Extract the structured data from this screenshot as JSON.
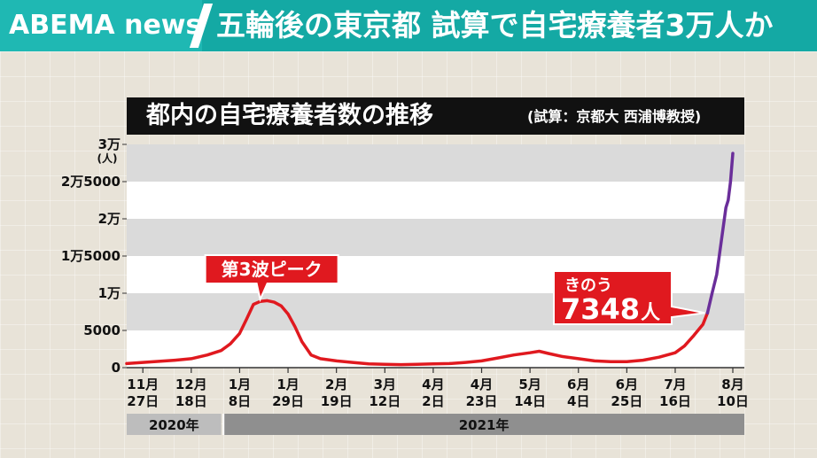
{
  "header": {
    "logo": "ABEMA news",
    "headline": "五輪後の東京都 試算で自宅療養者3万人か"
  },
  "chart_data": {
    "type": "line",
    "title": "都内の自宅療養者数の推移",
    "subtitle": "(試算：京都大 西浦博教授)",
    "ylabel": "(人)",
    "ylim": [
      0,
      30000
    ],
    "yticks": [
      {
        "value": 0,
        "label": "0"
      },
      {
        "value": 5000,
        "label": "5000"
      },
      {
        "value": 10000,
        "label": "1万"
      },
      {
        "value": 15000,
        "label": "1万5000"
      },
      {
        "value": 20000,
        "label": "2万"
      },
      {
        "value": 25000,
        "label": "2万5000"
      },
      {
        "value": 30000,
        "label": "3万"
      }
    ],
    "xticks": [
      {
        "date": "2020-11-27",
        "month": "11月",
        "day": "27日"
      },
      {
        "date": "2020-12-18",
        "month": "12月",
        "day": "18日"
      },
      {
        "date": "2021-01-08",
        "month": "1月",
        "day": "8日"
      },
      {
        "date": "2021-01-29",
        "month": "1月",
        "day": "29日"
      },
      {
        "date": "2021-02-19",
        "month": "2月",
        "day": "19日"
      },
      {
        "date": "2021-03-12",
        "month": "3月",
        "day": "12日"
      },
      {
        "date": "2021-04-02",
        "month": "4月",
        "day": "2日"
      },
      {
        "date": "2021-04-23",
        "month": "4月",
        "day": "23日"
      },
      {
        "date": "2021-05-14",
        "month": "5月",
        "day": "14日"
      },
      {
        "date": "2021-06-04",
        "month": "6月",
        "day": "4日"
      },
      {
        "date": "2021-06-25",
        "month": "6月",
        "day": "25日"
      },
      {
        "date": "2021-07-16",
        "month": "7月",
        "day": "16日"
      },
      {
        "date": "2021-08-10",
        "month": "8月",
        "day": "10日"
      }
    ],
    "years": [
      {
        "label": "2020年",
        "from": "2020-11-20",
        "to": "2020-12-31"
      },
      {
        "label": "2021年",
        "from": "2021-01-01",
        "to": "2021-08-15"
      }
    ],
    "series": [
      {
        "color": "#e0191f",
        "points": [
          [
            "2020-11-20",
            550
          ],
          [
            "2020-11-27",
            700
          ],
          [
            "2020-12-04",
            850
          ],
          [
            "2020-12-11",
            1000
          ],
          [
            "2020-12-18",
            1200
          ],
          [
            "2020-12-25",
            1700
          ],
          [
            "2020-12-31",
            2300
          ],
          [
            "2021-01-04",
            3200
          ],
          [
            "2021-01-08",
            4600
          ],
          [
            "2021-01-11",
            6500
          ],
          [
            "2021-01-14",
            8500
          ],
          [
            "2021-01-17",
            8900
          ],
          [
            "2021-01-20",
            9000
          ],
          [
            "2021-01-23",
            8800
          ],
          [
            "2021-01-26",
            8300
          ],
          [
            "2021-01-29",
            7200
          ],
          [
            "2021-02-01",
            5500
          ],
          [
            "2021-02-04",
            3500
          ],
          [
            "2021-02-08",
            1700
          ],
          [
            "2021-02-12",
            1200
          ],
          [
            "2021-02-19",
            900
          ],
          [
            "2021-02-26",
            700
          ],
          [
            "2021-03-05",
            500
          ],
          [
            "2021-03-12",
            450
          ],
          [
            "2021-03-19",
            400
          ],
          [
            "2021-03-26",
            450
          ],
          [
            "2021-04-02",
            500
          ],
          [
            "2021-04-09",
            550
          ],
          [
            "2021-04-16",
            700
          ],
          [
            "2021-04-23",
            900
          ],
          [
            "2021-04-30",
            1300
          ],
          [
            "2021-05-07",
            1700
          ],
          [
            "2021-05-14",
            2000
          ],
          [
            "2021-05-18",
            2200
          ],
          [
            "2021-05-22",
            1900
          ],
          [
            "2021-05-28",
            1500
          ],
          [
            "2021-06-04",
            1200
          ],
          [
            "2021-06-11",
            900
          ],
          [
            "2021-06-18",
            800
          ],
          [
            "2021-06-25",
            800
          ],
          [
            "2021-07-02",
            1000
          ],
          [
            "2021-07-09",
            1400
          ],
          [
            "2021-07-16",
            2000
          ],
          [
            "2021-07-20",
            2900
          ],
          [
            "2021-07-24",
            4300
          ],
          [
            "2021-07-28",
            5800
          ],
          [
            "2021-07-30",
            7348
          ]
        ]
      },
      {
        "color": "#6a2e9a",
        "points": [
          [
            "2021-07-30",
            7348
          ],
          [
            "2021-08-01",
            10000
          ],
          [
            "2021-08-03",
            12500
          ],
          [
            "2021-08-05",
            17000
          ],
          [
            "2021-08-07",
            21500
          ],
          [
            "2021-08-08",
            22500
          ],
          [
            "2021-08-09",
            25000
          ],
          [
            "2021-08-10",
            28800
          ]
        ]
      }
    ],
    "annotations": [
      {
        "text": "第3波ピーク",
        "date": "2021-01-20",
        "value": 9000
      },
      {
        "text_small": "きのう",
        "value_text": "7348",
        "unit": "人",
        "date": "2021-07-30",
        "value": 7348
      }
    ]
  }
}
